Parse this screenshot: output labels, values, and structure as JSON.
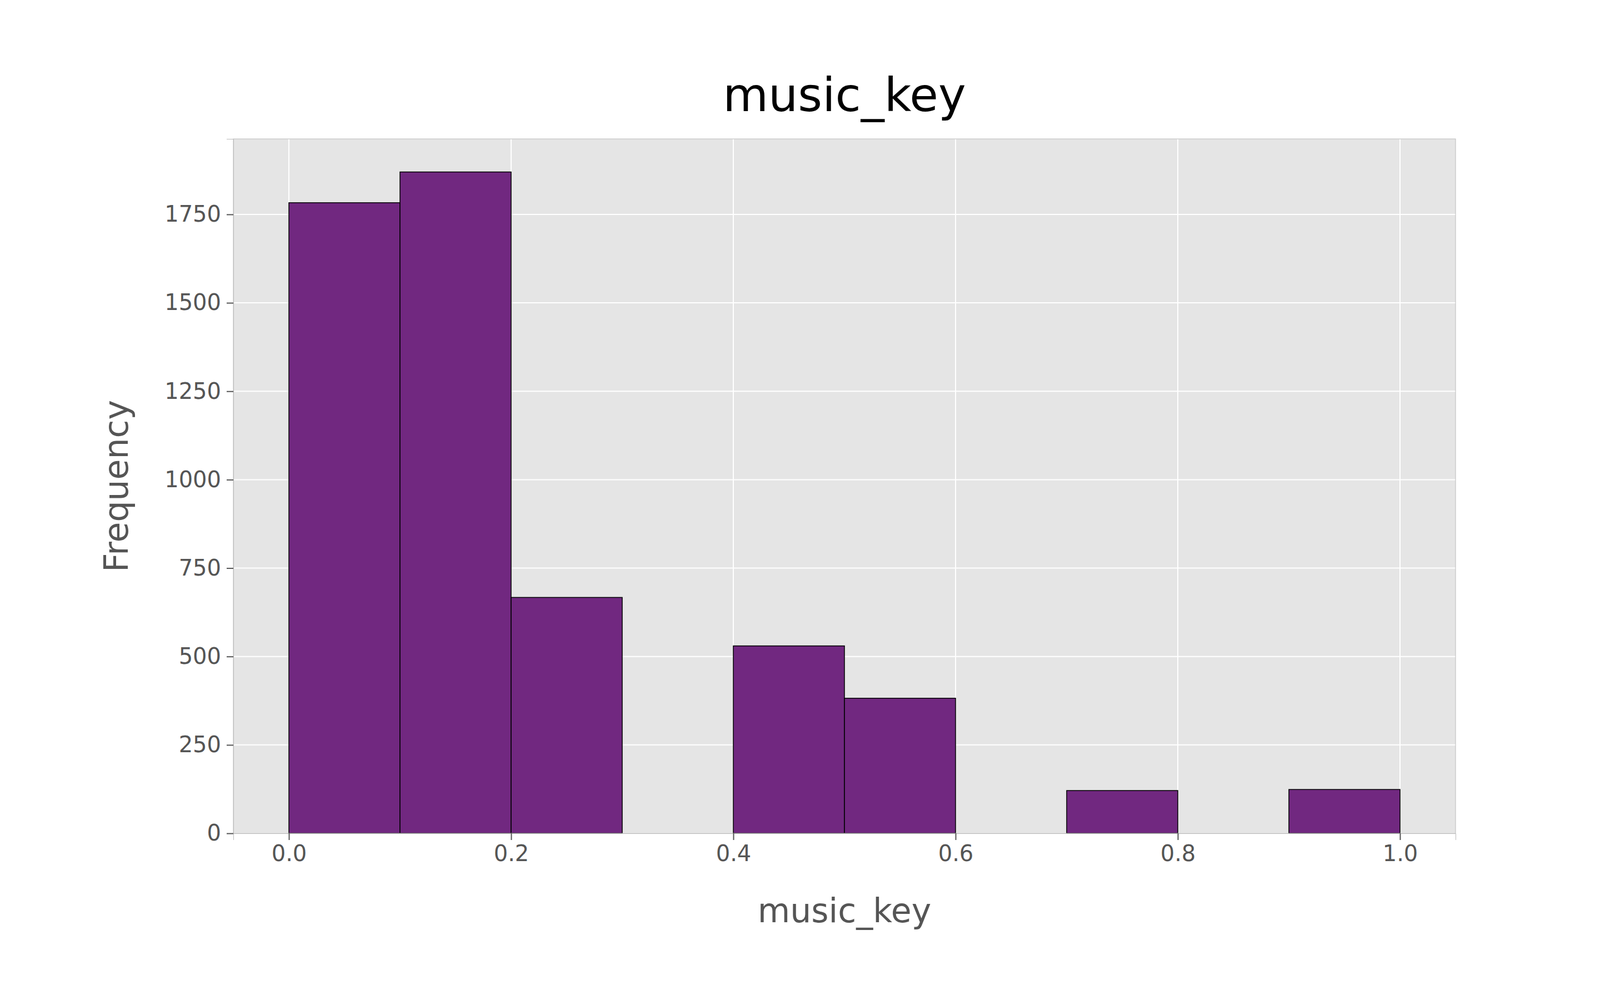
{
  "chart_data": {
    "type": "histogram",
    "title": "music_key",
    "x_label": "music_key",
    "y_label": "Frequency",
    "bins": [
      0.0,
      0.1,
      0.2,
      0.3,
      0.4,
      0.5,
      0.6,
      0.7,
      0.8,
      0.9,
      1.0
    ],
    "values": [
      1783,
      1870,
      667,
      0,
      530,
      382,
      0,
      121,
      0,
      124
    ],
    "color": "#712880",
    "xlim": [
      -0.05,
      1.05
    ],
    "xticks": [
      {
        "value": 0,
        "label": "0.0"
      },
      0.2,
      0.4,
      0.6,
      0.8,
      {
        "value": 1,
        "label": "1.0"
      }
    ],
    "ylim": [
      0,
      1963.5
    ],
    "yticks": [
      0,
      250,
      500,
      750,
      1000,
      1250,
      1500,
      1750
    ],
    "grid": true
  }
}
